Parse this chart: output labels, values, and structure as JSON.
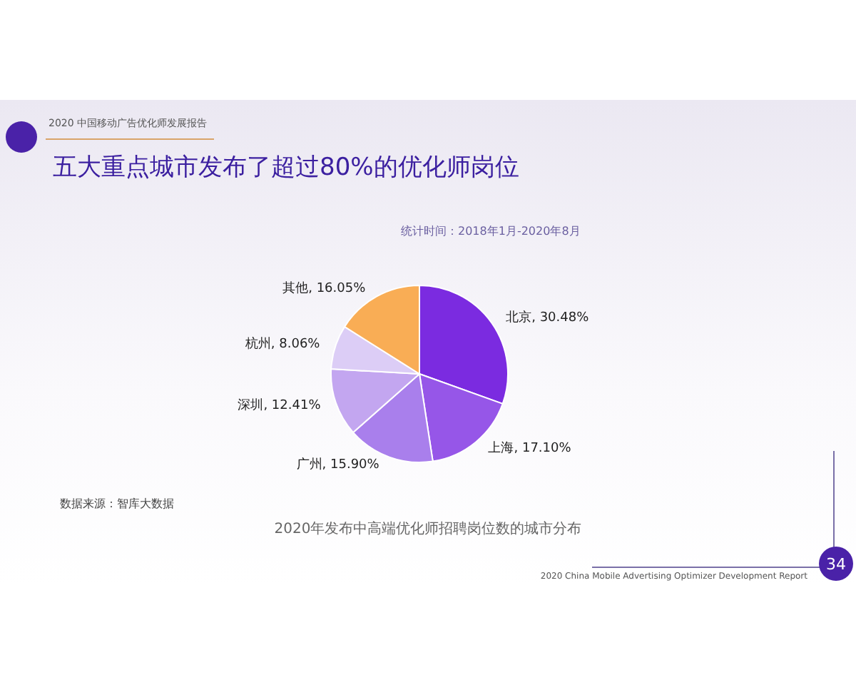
{
  "chart_data": {
    "type": "pie",
    "title": "五大重点城市发布了超过80%的优化师岗位",
    "subtitle": "统计时间：2018年1月-2020年8月",
    "categories": [
      "北京",
      "上海",
      "广州",
      "深圳",
      "杭州",
      "其他"
    ],
    "values": [
      30.48,
      17.1,
      15.9,
      12.41,
      8.06,
      16.05
    ],
    "colors": [
      "#7b2be0",
      "#9656e8",
      "#a97fec",
      "#c3a6f0",
      "#dccdf6",
      "#f9ad55"
    ],
    "value_labels": [
      "30.48%",
      "17.10%",
      "15.90%",
      "12.41%",
      "8.06%",
      "16.05%"
    ],
    "legend": false,
    "annotations": [
      "2020 中国移动广告优化师发展报告",
      "数据来源：智库大数据",
      "2020年发布中高端优化师招聘岗位数的城市分布",
      "2020 China Mobile Advertising Optimizer Development Report",
      "34"
    ]
  }
}
